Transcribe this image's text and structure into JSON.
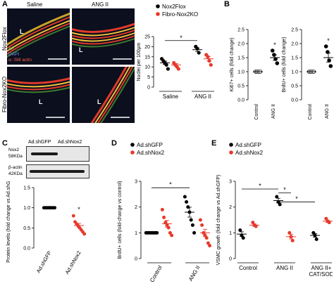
{
  "panels": {
    "A": {
      "letter": "A",
      "col_headers": [
        "Saline",
        "ANG II"
      ],
      "row_labels": [
        "Nox2Flox",
        "Fibro-Nox2KO"
      ],
      "stain_labels": [
        "AF",
        "DAPI",
        "α- SM actin"
      ],
      "lumen_label": "L"
    },
    "B": {
      "letter": "B"
    },
    "C": {
      "letter": "C",
      "blot": {
        "lanes": [
          "Ad.shGFP",
          "Ad.shNox2"
        ],
        "rows": [
          {
            "name": "Nox2",
            "size": "58KDa"
          },
          {
            "name": "β-actin",
            "size": "42KDa"
          }
        ]
      }
    },
    "D": {
      "letter": "D"
    },
    "E": {
      "letter": "E"
    }
  },
  "colors": {
    "black_group": "#000000",
    "red_group": "#e8392b",
    "lumen_bg": "#0b0f1e"
  },
  "chart_data": [
    {
      "id": "A-nuclei",
      "type": "scatter",
      "legend": [
        "Nox2Flox",
        "Fibro-Nox2KO"
      ],
      "ylabel": "Nuclei per 100µm",
      "ylim": [
        0,
        25
      ],
      "yticks": [
        0,
        5,
        10,
        15,
        20,
        25
      ],
      "groups": [
        "Saline",
        "ANG II"
      ],
      "significance": [
        {
          "between": [
            "Saline-Nox2Flox",
            "ANG II-Nox2Flox"
          ],
          "label": "*"
        }
      ],
      "series": [
        {
          "name": "Nox2Flox",
          "color": "#000000",
          "points": {
            "Saline": [
              14,
              13,
              12,
              11,
              9
            ],
            "ANG II": [
              20,
              19,
              17
            ]
          },
          "mean": {
            "Saline": 12,
            "ANG II": 18.5
          }
        },
        {
          "name": "Fibro-Nox2KO",
          "color": "#e8392b",
          "points": {
            "Saline": [
              12,
              11,
              10,
              9
            ],
            "ANG II": [
              16,
              15,
              13,
              11
            ]
          },
          "mean": {
            "Saline": 11,
            "ANG II": 14
          }
        }
      ]
    },
    {
      "id": "B-ki67",
      "type": "scatter",
      "ylabel": "Ki67+ cells (fold change)",
      "ylim": [
        0,
        2.5
      ],
      "yticks": [
        0.0,
        0.5,
        1.0,
        1.5,
        2.0,
        2.5
      ],
      "categories": [
        "Control",
        "ANG II"
      ],
      "values": {
        "Control": [
          1,
          1,
          1,
          1
        ],
        "ANG II": [
          1.75,
          1.6,
          1.45,
          1.3
        ]
      },
      "mean": {
        "Control": 1.0,
        "ANG II": 1.5
      },
      "significance": [
        {
          "over": "ANG II",
          "label": "*"
        }
      ]
    },
    {
      "id": "B-brdu",
      "type": "scatter",
      "ylabel": "BrdU+ cells (fold change)",
      "ylim": [
        0,
        2.5
      ],
      "yticks": [
        0.0,
        0.5,
        1.0,
        1.5,
        2.0,
        2.5
      ],
      "categories": [
        "Control",
        "ANG II"
      ],
      "values": {
        "Control": [
          1,
          1,
          1,
          1
        ],
        "ANG II": [
          1.9,
          1.7,
          1.4,
          1.2
        ]
      },
      "mean": {
        "Control": 1.0,
        "ANG II": 1.5
      },
      "significance": [
        {
          "over": "ANG II",
          "label": "*"
        }
      ]
    },
    {
      "id": "C-protein",
      "type": "scatter",
      "ylabel": "Protein levels (fold change vs Ad.shGFP)",
      "ylim": [
        0,
        1.5
      ],
      "yticks": [
        0.0,
        0.5,
        1.0,
        1.5
      ],
      "categories": [
        "Ad.shGFP",
        "Ad.shNox2"
      ],
      "values": {
        "Ad.shGFP": [
          1,
          1,
          1,
          1,
          1,
          1,
          1,
          1
        ],
        "Ad.shNox2": [
          0.8,
          0.65,
          0.6,
          0.55,
          0.5,
          0.45,
          0.4,
          0.35
        ]
      },
      "mean": {
        "Ad.shGFP": 1.0,
        "Ad.shNox2": 0.56
      },
      "significance": [
        {
          "over": "Ad.shNox2",
          "label": "*"
        }
      ]
    },
    {
      "id": "D-brdu",
      "type": "scatter",
      "legend": [
        "Ad.shGFP",
        "Ad.shNox2"
      ],
      "ylabel": "BrdU+ cells (fold-change vs control)",
      "ylim": [
        0,
        3
      ],
      "yticks": [
        0,
        1,
        2,
        3
      ],
      "groups": [
        "Control",
        "ANG II"
      ],
      "significance": [
        {
          "between": [
            "Control-Ad.shGFP",
            "ANG II-Ad.shGFP"
          ],
          "label": "*"
        }
      ],
      "series": [
        {
          "name": "Ad.shGFP",
          "color": "#000000",
          "points": {
            "Control": [
              1,
              1,
              1,
              1,
              1,
              1,
              1,
              1
            ],
            "ANG II": [
              2.4,
              2.2,
              2.0,
              1.8,
              1.5,
              1.3,
              1.0
            ]
          },
          "mean": {
            "Control": 1.0,
            "ANG II": 1.8
          }
        },
        {
          "name": "Ad.shNox2",
          "color": "#e8392b",
          "points": {
            "Control": [
              1.9,
              1.6,
              1.4,
              1.3,
              1.2,
              1.0,
              0.9
            ],
            "ANG II": [
              1.5,
              1.3,
              1.0,
              0.9,
              0.8,
              0.6,
              0.5
            ]
          },
          "mean": {
            "Control": 1.35,
            "ANG II": 1.0
          }
        }
      ]
    },
    {
      "id": "E-vsmc",
      "type": "scatter",
      "legend": [
        "Ad.shGFP",
        "Ad.shNox2"
      ],
      "ylabel": "VSMC growth (fold change vs Ad.shGFP)",
      "ylim": [
        0,
        3
      ],
      "yticks": [
        0,
        1,
        2,
        3
      ],
      "groups": [
        "Control",
        "ANG II",
        "ANG II+ CAT/SOD"
      ],
      "significance": [
        {
          "between": [
            "Control-Ad.shGFP",
            "ANG II-Ad.shGFP"
          ],
          "label": "*"
        },
        {
          "between": [
            "ANG II-Ad.shGFP",
            "ANG II-Ad.shNox2"
          ],
          "label": "*"
        },
        {
          "between": [
            "ANG II-Ad.shGFP",
            "ANG II+ CAT/SOD-Ad.shGFP"
          ],
          "label": "*"
        }
      ],
      "series": [
        {
          "name": "Ad.shGFP",
          "color": "#000000",
          "points": {
            "Control": [
              1.1,
              0.9,
              0.8
            ],
            "ANG II": [
              2.4,
              2.2,
              2.1
            ],
            "ANG II+ CAT/SOD": [
              1.0,
              0.9,
              0.75
            ]
          },
          "mean": {
            "Control": 0.95,
            "ANG II": 2.25,
            "ANG II+ CAT/SOD": 0.9
          }
        },
        {
          "name": "Ad.shNox2",
          "color": "#e8392b",
          "points": {
            "Control": [
              1.4,
              1.3,
              1.25
            ],
            "ANG II": [
              1.0,
              0.85,
              0.7
            ],
            "ANG II+ CAT/SOD": [
              1.55,
              1.45,
              1.4
            ]
          },
          "mean": {
            "Control": 1.3,
            "ANG II": 0.85,
            "ANG II+ CAT/SOD": 1.45
          }
        }
      ]
    }
  ]
}
